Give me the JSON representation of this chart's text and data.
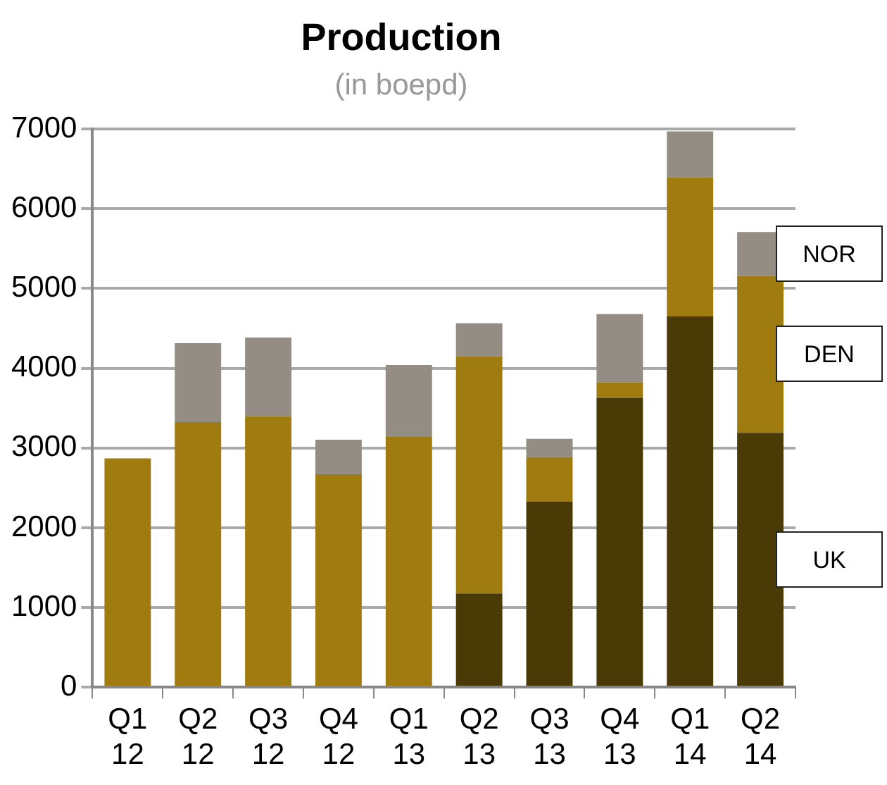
{
  "chart_data": {
    "type": "bar",
    "title": "Production",
    "subtitle": "(in boepd)",
    "stacked": true,
    "categories": [
      "Q1 12",
      "Q2 12",
      "Q3 12",
      "Q4 12",
      "Q1 13",
      "Q2 13",
      "Q3 13",
      "Q4 13",
      "Q1 14",
      "Q2 14"
    ],
    "series": [
      {
        "name": "UK",
        "color": "#4a3a06",
        "values": [
          0,
          0,
          0,
          0,
          0,
          1175,
          2330,
          3630,
          4650,
          3190
        ]
      },
      {
        "name": "DEN",
        "color": "#a07c10",
        "values": [
          2870,
          3325,
          3400,
          2670,
          3140,
          2975,
          555,
          195,
          1745,
          1970
        ]
      },
      {
        "name": "NOR",
        "color": "#938d84",
        "values": [
          0,
          990,
          985,
          435,
          900,
          415,
          230,
          855,
          575,
          550
        ]
      }
    ],
    "ylim": [
      0,
      7000
    ],
    "yticks": [
      0,
      1000,
      2000,
      3000,
      4000,
      5000,
      6000,
      7000
    ],
    "grid": "y",
    "legend": "right"
  }
}
